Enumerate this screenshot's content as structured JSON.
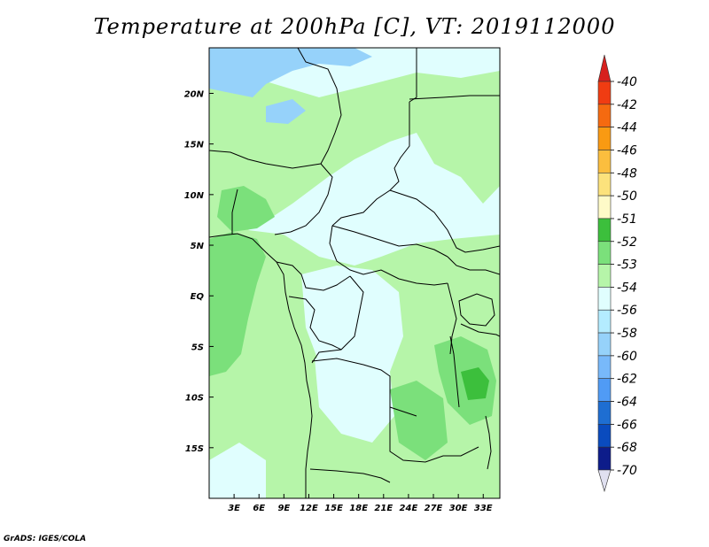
{
  "title": "Temperature at 200hPa [C], VT: 2019112000",
  "credit": "GrADS: IGES/COLA",
  "map": {
    "lon_range": [
      0,
      35
    ],
    "lat_range": [
      -20,
      24.5
    ],
    "x_ticks": [
      "3E",
      "6E",
      "9E",
      "12E",
      "15E",
      "18E",
      "21E",
      "24E",
      "27E",
      "30E",
      "33E"
    ],
    "y_ticks": [
      "20N",
      "15N",
      "10N",
      "5N",
      "EQ",
      "5S",
      "10S",
      "15S"
    ]
  },
  "colorbar": {
    "levels": [
      {
        "label": "-40",
        "color": "#d7201e"
      },
      {
        "label": "-42",
        "color": "#f03c12"
      },
      {
        "label": "-44",
        "color": "#f56a10"
      },
      {
        "label": "-46",
        "color": "#f99a12"
      },
      {
        "label": "-48",
        "color": "#fbbe3e"
      },
      {
        "label": "-50",
        "color": "#fce27c"
      },
      {
        "label": "-51",
        "color": "#fefac8"
      },
      {
        "label": "-52",
        "color": "#3cbf3c"
      },
      {
        "label": "-53",
        "color": "#7be07b"
      },
      {
        "label": "-54",
        "color": "#b6f5a9"
      },
      {
        "label": "-56",
        "color": "#e0fefe"
      },
      {
        "label": "-58",
        "color": "#b4ecff"
      },
      {
        "label": "-60",
        "color": "#96d2fa"
      },
      {
        "label": "-62",
        "color": "#78b9fa"
      },
      {
        "label": "-64",
        "color": "#509bf5"
      },
      {
        "label": "-66",
        "color": "#1e6ed2"
      },
      {
        "label": "-68",
        "color": "#0a4bbe"
      },
      {
        "label": "-70",
        "color": "#0d1c8a"
      }
    ],
    "under_color": "#0d1c8a",
    "over_color": "#d7201e"
  },
  "fill_colors": {
    "cold": "#96d2fa",
    "cool": "#e0fefe",
    "mild": "#b6f5a9",
    "warm": "#7be07b",
    "warmest": "#3cbf3c"
  }
}
